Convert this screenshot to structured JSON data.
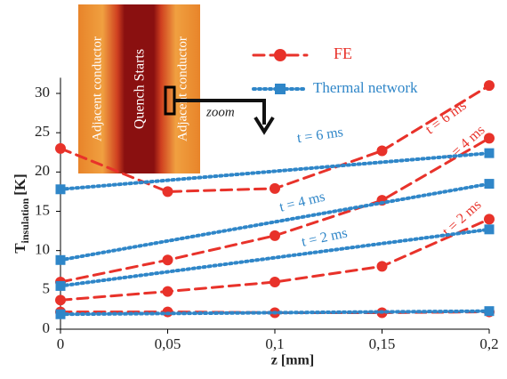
{
  "chart_data": {
    "type": "line",
    "xlabel": "z [mm]",
    "ylabel": {
      "symbol": "T",
      "subscript": "insulation",
      "unit": "[K]"
    },
    "xlim": [
      0,
      0.2
    ],
    "xticks": [
      {
        "value": 0,
        "label": "0"
      },
      {
        "value": 0.05,
        "label": "0,05"
      },
      {
        "value": 0.1,
        "label": "0,1"
      },
      {
        "value": 0.15,
        "label": "0,15"
      },
      {
        "value": 0.2,
        "label": "0,2"
      }
    ],
    "ylim": [
      0,
      32
    ],
    "yticks": [
      0,
      5,
      10,
      15,
      20,
      25,
      30
    ],
    "series": [
      {
        "name": "FE",
        "color": "#e8322a",
        "dash": "dashed",
        "marker": "circle",
        "x": [
          0,
          0.05,
          0.1,
          0.15,
          0.2
        ],
        "curves": [
          {
            "values": [
              2.2,
              2.2,
              2.1,
              2.1,
              2.2
            ]
          },
          {
            "label": "t = 2 ms",
            "values": [
              3.7,
              4.8,
              6.0,
              8.0,
              14.0
            ]
          },
          {
            "label": "t = 4 ms",
            "values": [
              6.0,
              8.8,
              11.9,
              16.4,
              24.3
            ]
          },
          {
            "label": "t = 6 ms",
            "values": [
              23.0,
              17.5,
              17.9,
              22.7,
              31.0
            ]
          }
        ]
      },
      {
        "name": "Thermal network",
        "color": "#2f86c8",
        "dash": "dotted",
        "marker": "square",
        "x": [
          0,
          0.2
        ],
        "curves": [
          {
            "values": [
              1.9,
              2.3
            ]
          },
          {
            "label": "t = 2 ms",
            "values": [
              5.5,
              12.7
            ]
          },
          {
            "label": "t = 4 ms",
            "values": [
              8.8,
              18.5
            ]
          },
          {
            "label": "t = 6 ms",
            "values": [
              17.8,
              22.4
            ]
          }
        ]
      }
    ],
    "inset": {
      "left": "Adjacent conductor",
      "center": "Quench Starts",
      "right": "Adjacent conductor",
      "arrow": "zoom"
    }
  }
}
